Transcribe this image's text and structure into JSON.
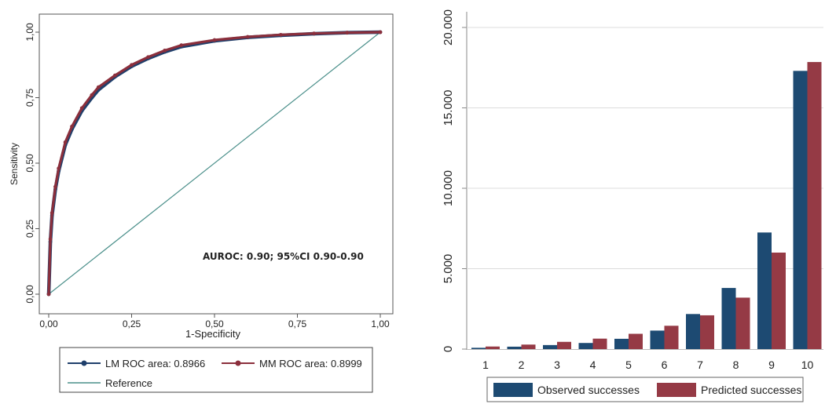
{
  "chart_data": [
    {
      "type": "line",
      "xlabel": "1-Specificity",
      "ylabel": "Sensitivity",
      "xlim": [
        0,
        1
      ],
      "ylim": [
        0,
        1
      ],
      "x_ticks": [
        "0,00",
        "0,25",
        "0,50",
        "0,75",
        "1,00"
      ],
      "y_ticks": [
        "0,00",
        "0,25",
        "0,50",
        "0,75",
        "1,00"
      ],
      "annotation": "AUROC: 0.90; 95%CI 0.90-0.90",
      "legend_position": "bottom",
      "grid": false,
      "series": [
        {
          "name": "LM ROC area: 0.8966",
          "color": "#1f3f6b",
          "x": [
            0,
            0.005,
            0.01,
            0.02,
            0.03,
            0.05,
            0.07,
            0.1,
            0.13,
            0.15,
            0.2,
            0.25,
            0.3,
            0.35,
            0.4,
            0.5,
            0.6,
            0.7,
            0.8,
            0.9,
            1.0
          ],
          "y": [
            0,
            0.2,
            0.3,
            0.4,
            0.47,
            0.57,
            0.63,
            0.7,
            0.75,
            0.78,
            0.83,
            0.87,
            0.9,
            0.925,
            0.945,
            0.967,
            0.98,
            0.988,
            0.994,
            0.998,
            1.0
          ]
        },
        {
          "name": "MM ROC area: 0.8999",
          "color": "#8b2f3c",
          "x": [
            0,
            0.005,
            0.01,
            0.02,
            0.03,
            0.05,
            0.07,
            0.1,
            0.13,
            0.15,
            0.2,
            0.25,
            0.3,
            0.35,
            0.4,
            0.5,
            0.6,
            0.7,
            0.8,
            0.9,
            1.0
          ],
          "y": [
            0,
            0.21,
            0.31,
            0.41,
            0.48,
            0.58,
            0.64,
            0.71,
            0.76,
            0.79,
            0.835,
            0.875,
            0.905,
            0.93,
            0.95,
            0.97,
            0.982,
            0.99,
            0.995,
            0.998,
            1.0
          ]
        },
        {
          "name": "Reference",
          "color": "#4a8f8a",
          "x": [
            0,
            1
          ],
          "y": [
            0,
            1
          ]
        }
      ]
    },
    {
      "type": "bar",
      "categories": [
        "1",
        "2",
        "3",
        "4",
        "5",
        "6",
        "7",
        "8",
        "9",
        "10"
      ],
      "ylim": [
        0,
        20000
      ],
      "y_ticks": [
        "0",
        "5.000",
        "10.000",
        "15.000",
        "20.000"
      ],
      "legend_position": "bottom",
      "grid": true,
      "series": [
        {
          "name": "Observed successes",
          "color": "#1d4a72",
          "values": [
            80,
            150,
            250,
            380,
            640,
            1150,
            2180,
            3800,
            7250,
            17300
          ]
        },
        {
          "name": "Predicted successes",
          "color": "#953a45",
          "values": [
            160,
            280,
            450,
            650,
            950,
            1450,
            2100,
            3200,
            6000,
            17850
          ]
        }
      ]
    }
  ]
}
